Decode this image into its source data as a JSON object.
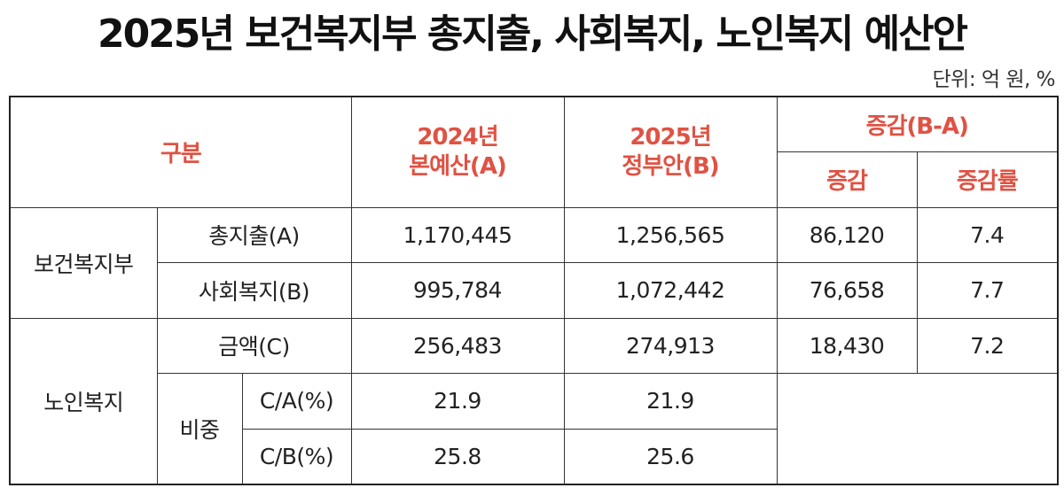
{
  "title": "2025년 보건복지부 총지출, 사회복지, 노인복지 예산안",
  "unit": "단위: 억 원, %",
  "colors": {
    "header_accent": "#e05243",
    "border": "#333333",
    "text": "#222222"
  },
  "headers": {
    "category": "구분",
    "col_2024_line1": "2024년",
    "col_2024_line2": "본예산(A)",
    "col_2025_line1": "2025년",
    "col_2025_line2": "정부안(B)",
    "change_group": "증감(B-A)",
    "change": "증감",
    "change_rate": "증감률"
  },
  "rows": {
    "ministry": "보건복지부",
    "total": {
      "label": "총지출(A)",
      "v2024": "1,170,445",
      "v2025": "1,256,565",
      "change": "86,120",
      "rate": "7.4"
    },
    "social": {
      "label": "사회복지(B)",
      "v2024": "995,784",
      "v2025": "1,072,442",
      "change": "76,658",
      "rate": "7.7"
    },
    "elderly": "노인복지",
    "amount": {
      "label": "금액(C)",
      "v2024": "256,483",
      "v2025": "274,913",
      "change": "18,430",
      "rate": "7.2"
    },
    "share": "비중",
    "ca": {
      "label": "C/A(%)",
      "v2024": "21.9",
      "v2025": "21.9"
    },
    "cb": {
      "label": "C/B(%)",
      "v2024": "25.8",
      "v2025": "25.6"
    }
  }
}
